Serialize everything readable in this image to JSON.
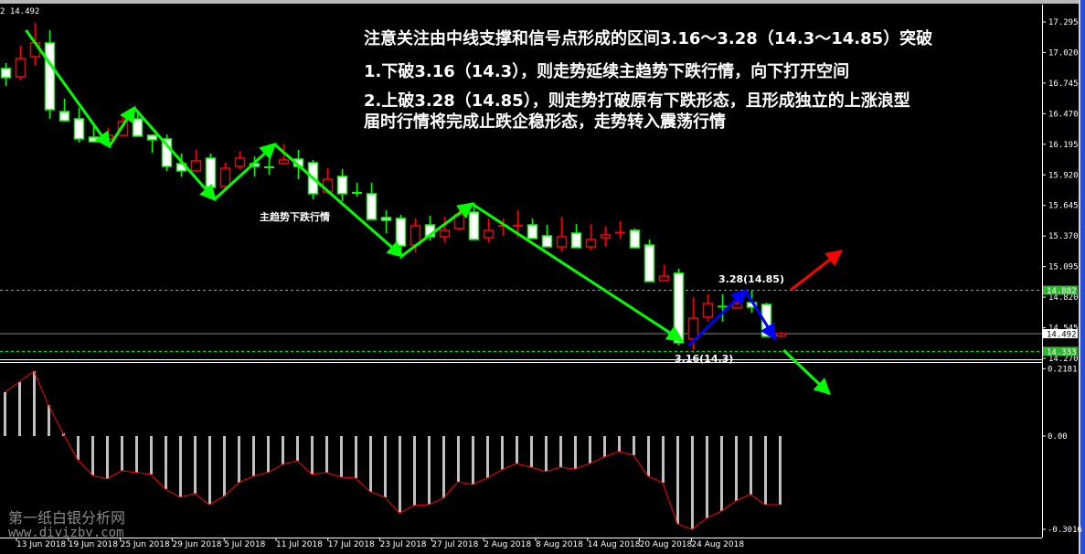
{
  "header": {
    "price_label": "2 14.492"
  },
  "annotations": {
    "note_line1": "注意关注由中线支撑和信号点形成的区间3.16～3.28（14.3～14.85）突破",
    "note_line2": "1.下破3.16（14.3），则走势延续主趋势下跌行情，向下打开空间",
    "note_line3": "2.上破3.28（14.85），则走势打破原有下跌形态，且形成独立的上涨浪型",
    "note_line4": "届时行情将完成止跌企稳形态，走势转入震荡行情",
    "trend_label": "主趋势下跌行情",
    "high_point_label": "3.28(14.85)",
    "low_point_label": "3.16(14.3)"
  },
  "watermark": {
    "name": "第一纸白银分析网",
    "url": "www.diyizby.com"
  },
  "colors": {
    "background": "#000000",
    "bull_candle": "#ff0000",
    "bear_candle": "#00ff00",
    "bear_body": "#ffffff",
    "histogram": "#c0c0c0",
    "signal_line": "#ff0000",
    "trend_arrow": "#00ff00",
    "rebound_arrow": "#0000ff",
    "breakout_up_arrow": "#ff0000",
    "level_line": "#00ff00",
    "current_price_line": "#808080"
  },
  "chart_data": [
    {
      "type": "candlestick",
      "title": "",
      "x_tick_labels": [
        "13 Jun 2018",
        "19 Jun 2018",
        "25 Jun 2018",
        "29 Jun 2018",
        "5 Jul 2018",
        "11 Jul 2018",
        "17 Jul 2018",
        "23 Jul 2018",
        "27 Jul 2018",
        "2 Aug 2018",
        "8 Aug 2018",
        "14 Aug 2018",
        "20 Aug 2018",
        "24 Aug 2018"
      ],
      "y_tick_labels": [
        "17.295",
        "17.020",
        "16.745",
        "16.470",
        "16.195",
        "15.920",
        "15.645",
        "15.370",
        "15.095",
        "14.820",
        "14.545",
        "14.270"
      ],
      "ylim": [
        14.27,
        17.295
      ],
      "grid": false,
      "ohlc": [
        [
          16.876,
          16.925,
          16.72,
          16.794
        ],
        [
          16.802,
          17.081,
          16.769,
          16.966
        ],
        [
          16.983,
          17.287,
          16.9,
          17.106
        ],
        [
          17.106,
          17.221,
          16.424,
          16.506
        ],
        [
          16.489,
          16.605,
          16.399,
          16.407
        ],
        [
          16.424,
          16.522,
          16.21,
          16.243
        ],
        [
          16.259,
          16.366,
          16.218,
          16.218
        ],
        [
          16.243,
          16.341,
          16.202,
          16.276
        ],
        [
          16.276,
          16.465,
          16.276,
          16.399
        ],
        [
          16.424,
          16.489,
          16.268,
          16.268
        ],
        [
          16.276,
          16.284,
          16.12,
          16.235
        ],
        [
          16.243,
          16.284,
          15.955,
          15.996
        ],
        [
          16.021,
          16.111,
          15.906,
          15.955
        ],
        [
          15.955,
          16.144,
          15.947,
          16.046
        ],
        [
          16.07,
          16.111,
          15.75,
          15.807
        ],
        [
          15.815,
          16.029,
          15.791,
          15.98
        ],
        [
          15.996,
          16.136,
          15.972,
          16.07
        ],
        [
          16.021,
          16.087,
          15.906,
          15.996
        ],
        [
          15.988,
          16.062,
          15.922,
          15.985
        ],
        [
          16.021,
          16.194,
          16.013,
          16.054
        ],
        [
          16.062,
          16.144,
          15.881,
          15.996
        ],
        [
          16.029,
          16.054,
          15.7,
          15.75
        ],
        [
          15.766,
          15.98,
          15.75,
          15.881
        ],
        [
          15.906,
          15.972,
          15.684,
          15.75
        ],
        [
          15.758,
          15.848,
          15.725,
          15.758
        ],
        [
          15.75,
          15.848,
          15.519,
          15.519
        ],
        [
          15.536,
          15.602,
          15.396,
          15.511
        ],
        [
          15.528,
          15.561,
          15.166,
          15.281
        ],
        [
          15.289,
          15.528,
          15.224,
          15.462
        ],
        [
          15.47,
          15.552,
          15.33,
          15.363
        ],
        [
          15.363,
          15.544,
          15.314,
          15.421
        ],
        [
          15.437,
          15.618,
          15.421,
          15.561
        ],
        [
          15.585,
          15.667,
          15.339,
          15.339
        ],
        [
          15.355,
          15.528,
          15.314,
          15.421
        ],
        [
          15.455,
          15.528,
          15.372,
          15.462
        ],
        [
          15.455,
          15.602,
          15.355,
          15.462
        ],
        [
          15.47,
          15.528,
          15.347,
          15.347
        ],
        [
          15.372,
          15.47,
          15.273,
          15.273
        ],
        [
          15.273,
          15.544,
          15.232,
          15.363
        ],
        [
          15.396,
          15.478,
          15.265,
          15.265
        ],
        [
          15.273,
          15.478,
          15.248,
          15.339
        ],
        [
          15.355,
          15.454,
          15.273,
          15.38
        ],
        [
          15.396,
          15.503,
          15.347,
          15.4
        ],
        [
          15.421,
          15.437,
          15.256,
          15.265
        ],
        [
          15.289,
          15.339,
          14.961,
          14.961
        ],
        [
          14.969,
          15.108,
          14.969,
          15.01
        ],
        [
          15.035,
          15.076,
          14.385,
          14.41
        ],
        [
          14.443,
          14.821,
          14.344,
          14.632
        ],
        [
          14.64,
          14.845,
          14.599,
          14.763
        ],
        [
          14.735,
          14.845,
          14.599,
          14.73
        ],
        [
          14.722,
          14.821,
          14.714,
          14.763
        ],
        [
          14.771,
          14.878,
          14.681,
          14.73
        ],
        [
          14.755,
          14.771,
          14.467,
          14.467
        ],
        [
          14.47,
          14.509,
          14.46,
          14.492
        ]
      ],
      "levels": {
        "upper": "14.882",
        "current": "14.492",
        "lower": "14.333"
      },
      "trend_path": [
        [
          1.4,
          17.221
        ],
        [
          7.1,
          16.177
        ],
        [
          8.8,
          16.522
        ],
        [
          14.3,
          15.7
        ],
        [
          18.4,
          16.194
        ],
        [
          27.1,
          15.191
        ],
        [
          31.9,
          15.659
        ],
        [
          46.2,
          14.434
        ]
      ],
      "rebound_path": [
        [
          46.7,
          14.385
        ],
        [
          50.6,
          14.878
        ],
        [
          52.6,
          14.451
        ]
      ],
      "breakout_up_arrow": [
        [
          53.7,
          14.886
        ],
        [
          57.1,
          15.232
        ]
      ],
      "breakdown_arrow": [
        [
          53.2,
          14.344
        ],
        [
          56.3,
          13.957
        ]
      ]
    },
    {
      "type": "bar",
      "title": "",
      "y_tick_labels": [
        "0.2181",
        "0.00",
        "-0.3016"
      ],
      "ylim": [
        -0.3016,
        0.2181
      ],
      "values": [
        0.142,
        0.175,
        0.21,
        0.1,
        0.009,
        -0.077,
        -0.127,
        -0.139,
        -0.112,
        -0.118,
        -0.124,
        -0.172,
        -0.198,
        -0.186,
        -0.222,
        -0.195,
        -0.151,
        -0.13,
        -0.118,
        -0.092,
        -0.08,
        -0.124,
        -0.118,
        -0.133,
        -0.136,
        -0.18,
        -0.198,
        -0.249,
        -0.225,
        -0.222,
        -0.201,
        -0.148,
        -0.157,
        -0.136,
        -0.109,
        -0.089,
        -0.101,
        -0.115,
        -0.101,
        -0.107,
        -0.089,
        -0.068,
        -0.05,
        -0.062,
        -0.13,
        -0.151,
        -0.284,
        -0.302,
        -0.266,
        -0.243,
        -0.21,
        -0.189,
        -0.222,
        -0.222
      ]
    }
  ]
}
